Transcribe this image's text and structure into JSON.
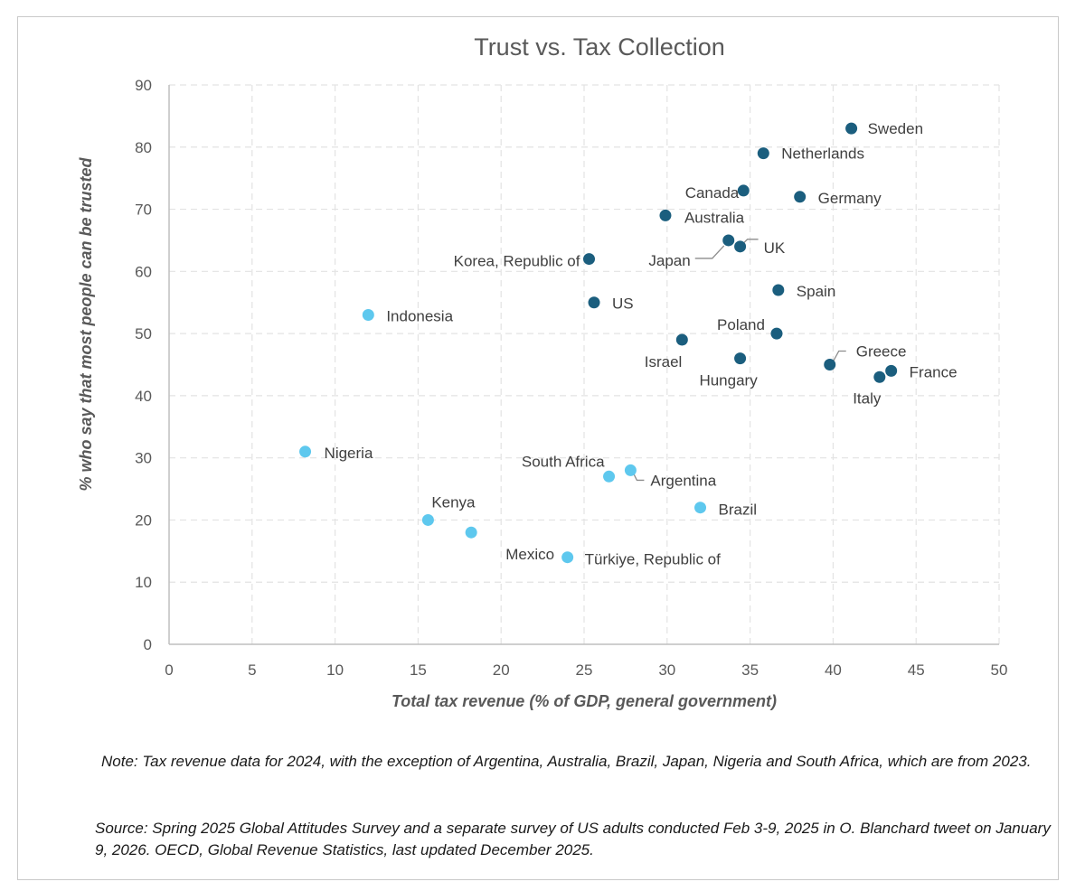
{
  "chart_data": {
    "type": "scatter",
    "title": "Trust vs.  Tax Collection",
    "xlabel": "Total tax revenue (% of GDP, general government)",
    "ylabel": "% who say that most people can be trusted",
    "xlim": [
      0,
      50
    ],
    "ylim": [
      0,
      90
    ],
    "xticks": [
      0,
      5,
      10,
      15,
      20,
      25,
      30,
      35,
      40,
      45,
      50
    ],
    "yticks": [
      0,
      10,
      20,
      30,
      40,
      50,
      60,
      70,
      80,
      90
    ],
    "grid": true,
    "colors": {
      "dark": "#1b5e7e",
      "light": "#5ec8ee"
    },
    "points": [
      {
        "label": "Sweden",
        "x": 41.1,
        "y": 83,
        "group": "dark"
      },
      {
        "label": "Netherlands",
        "x": 35.8,
        "y": 79,
        "group": "dark"
      },
      {
        "label": "Canada",
        "x": 34.6,
        "y": 73,
        "group": "dark"
      },
      {
        "label": "Germany",
        "x": 38.0,
        "y": 72,
        "group": "dark"
      },
      {
        "label": "Australia",
        "x": 29.9,
        "y": 69,
        "group": "dark"
      },
      {
        "label": "UK",
        "x": 34.4,
        "y": 64,
        "group": "dark"
      },
      {
        "label": "Japan",
        "x": 33.7,
        "y": 65,
        "group": "dark"
      },
      {
        "label": "Korea, Republic of",
        "x": 25.3,
        "y": 62,
        "group": "dark"
      },
      {
        "label": "Spain",
        "x": 36.7,
        "y": 57,
        "group": "dark"
      },
      {
        "label": "US",
        "x": 25.6,
        "y": 55,
        "group": "dark"
      },
      {
        "label": "Poland",
        "x": 36.6,
        "y": 50,
        "group": "dark"
      },
      {
        "label": "Israel",
        "x": 30.9,
        "y": 49,
        "group": "dark"
      },
      {
        "label": "Hungary",
        "x": 34.4,
        "y": 46,
        "group": "dark"
      },
      {
        "label": "Greece",
        "x": 39.8,
        "y": 45,
        "group": "dark"
      },
      {
        "label": "France",
        "x": 43.5,
        "y": 44,
        "group": "dark"
      },
      {
        "label": "Italy",
        "x": 42.8,
        "y": 43,
        "group": "dark"
      },
      {
        "label": "Indonesia",
        "x": 12.0,
        "y": 53,
        "group": "light"
      },
      {
        "label": "Nigeria",
        "x": 8.2,
        "y": 31,
        "group": "light"
      },
      {
        "label": "South Africa",
        "x": 26.5,
        "y": 27,
        "group": "light"
      },
      {
        "label": "Argentina",
        "x": 27.8,
        "y": 28,
        "group": "light"
      },
      {
        "label": "Brazil",
        "x": 32.0,
        "y": 22,
        "group": "light"
      },
      {
        "label": "Kenya",
        "x": 15.6,
        "y": 20,
        "group": "light"
      },
      {
        "label": "Mexico",
        "x": 18.2,
        "y": 18,
        "group": "light"
      },
      {
        "label": "Türkiye, Republic of",
        "x": 24.0,
        "y": 14,
        "group": "light"
      }
    ]
  },
  "notes": {
    "note1": "Note: Tax revenue data for 2024, with the exception of Argentina, Australia, Brazil, Japan, Nigeria and South Africa, which are from 2023.",
    "note2": "Source: Spring 2025 Global Attitudes Survey and a separate survey of US adults conducted Feb 3-9, 2025 in O. Blanchard tweet on January 9, 2026.  OECD, Global Revenue Statistics, last updated December 2025."
  }
}
